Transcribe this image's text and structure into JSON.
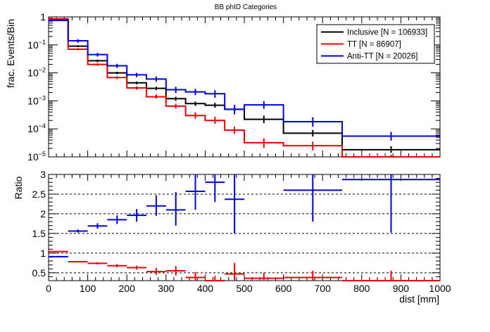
{
  "chart_data": [
    {
      "type": "histogram",
      "title": "BB phID Categories",
      "ylabel": "frac. Events/Bin",
      "xlabel": "",
      "yscale": "log",
      "ylim": [
        1e-05,
        1
      ],
      "xlim": [
        0,
        1000
      ],
      "y_ticks": [
        {
          "value": 1,
          "base": "1",
          "exp": ""
        },
        {
          "value": 0.1,
          "base": "10",
          "exp": "−1"
        },
        {
          "value": 0.01,
          "base": "10",
          "exp": "−2"
        },
        {
          "value": 0.001,
          "base": "10",
          "exp": "−3"
        },
        {
          "value": 0.0001,
          "base": "10",
          "exp": "−4"
        },
        {
          "value": 1e-05,
          "base": "10",
          "exp": "−5"
        }
      ],
      "legend_position": "top-right",
      "bin_edges": [
        0,
        50,
        100,
        150,
        200,
        250,
        300,
        350,
        400,
        450,
        500,
        600,
        750,
        1000
      ],
      "series": [
        {
          "name": "Inclusive [N = 106933]",
          "color": "#000000",
          "values": [
            0.8,
            0.09,
            0.027,
            0.01,
            0.0044,
            0.0028,
            0.0012,
            0.0008,
            0.0007,
            0.0005,
            0.00022,
            7e-05,
            1.8e-05
          ],
          "errors_low": [
            0.78,
            0.083,
            0.024,
            0.009,
            0.0039,
            0.0024,
            0.001,
            0.00066,
            0.00057,
            0.0004,
            0.00016,
            5.3e-05,
            1.4e-05
          ],
          "errors_high": [
            0.82,
            0.097,
            0.03,
            0.011,
            0.0049,
            0.0032,
            0.0014,
            0.00094,
            0.00085,
            0.00062,
            0.0003,
            9.2e-05,
            2.4e-05
          ]
        },
        {
          "name": "TT [N = 86907]",
          "color": "#ee0000",
          "values": [
            0.85,
            0.07,
            0.02,
            0.0068,
            0.0029,
            0.0014,
            0.00065,
            0.0003,
            0.0002,
            9e-05,
            3.2e-05,
            2.5e-05,
            1e-05
          ],
          "errors_low": [
            0.83,
            0.064,
            0.018,
            0.006,
            0.0025,
            0.0012,
            0.00053,
            0.00023,
            0.00015,
            6.6e-05,
            2.1e-05,
            1.7e-05,
            8e-06
          ],
          "errors_high": [
            0.87,
            0.076,
            0.022,
            0.0076,
            0.0033,
            0.0017,
            0.00079,
            0.00039,
            0.00027,
            0.00012,
            4.6e-05,
            3.5e-05,
            1.2e-05
          ]
        },
        {
          "name": "Anti-TT [N = 20026]",
          "color": "#0000dd",
          "values": [
            0.75,
            0.14,
            0.045,
            0.018,
            0.0085,
            0.006,
            0.0025,
            0.0021,
            0.0018,
            0.0005,
            0.00072,
            0.00018,
            5.5e-05
          ],
          "errors_low": [
            0.72,
            0.12,
            0.038,
            0.015,
            0.007,
            0.0048,
            0.0019,
            0.0016,
            0.0013,
            0.00033,
            0.00052,
            0.00012,
            3.8e-05
          ],
          "errors_high": [
            0.78,
            0.16,
            0.052,
            0.021,
            0.01,
            0.0074,
            0.0032,
            0.0027,
            0.0024,
            0.00072,
            0.00098,
            0.00026,
            7.8e-05
          ]
        }
      ]
    },
    {
      "type": "histogram",
      "title": "",
      "ylabel": "Ratio",
      "xlabel": "dist [mm]",
      "yscale": "linear",
      "ylim": [
        0.3,
        3
      ],
      "xlim": [
        0,
        1000
      ],
      "x_ticks": [
        0,
        100,
        200,
        300,
        400,
        500,
        600,
        700,
        800,
        900,
        1000
      ],
      "y_ticks": [
        0.5,
        1,
        1.5,
        2,
        2.5,
        3
      ],
      "y_tick_labels": [
        "0.5",
        "1",
        "1.5",
        "2",
        "2.5",
        "3"
      ],
      "dashed_grid": [
        0.5,
        1,
        1.5,
        2,
        2.5
      ],
      "bin_edges": [
        0,
        50,
        100,
        150,
        200,
        250,
        300,
        350,
        400,
        450,
        500,
        600,
        750,
        1000
      ],
      "series": [
        {
          "name": "TT",
          "color": "#ee0000",
          "values": [
            1.04,
            0.78,
            0.74,
            0.68,
            0.63,
            0.53,
            0.55,
            0.38,
            0.3,
            0.47,
            0.36,
            0.38,
            0.27
          ],
          "errors_low": [
            1.03,
            0.76,
            0.71,
            0.64,
            0.58,
            0.45,
            0.43,
            0.26,
            0.2,
            0.3,
            0.25,
            0.25,
            0.2
          ],
          "errors_high": [
            1.05,
            0.8,
            0.77,
            0.72,
            0.68,
            0.62,
            0.67,
            0.52,
            0.42,
            0.75,
            0.5,
            0.55,
            0.55
          ]
        },
        {
          "name": "Anti-TT",
          "color": "#0000dd",
          "values": [
            0.91,
            1.56,
            1.69,
            1.85,
            1.96,
            2.2,
            2.1,
            2.57,
            2.8,
            2.37,
            null,
            2.6,
            2.87
          ],
          "errors_low": [
            0.89,
            1.52,
            1.62,
            1.74,
            1.8,
            1.95,
            1.7,
            2.1,
            2.3,
            1.5,
            null,
            1.8,
            1.52
          ],
          "errors_high": [
            0.93,
            1.6,
            1.76,
            1.96,
            2.12,
            2.47,
            2.55,
            3.0,
            3.0,
            3.0,
            null,
            3.0,
            3.0
          ]
        }
      ]
    }
  ]
}
